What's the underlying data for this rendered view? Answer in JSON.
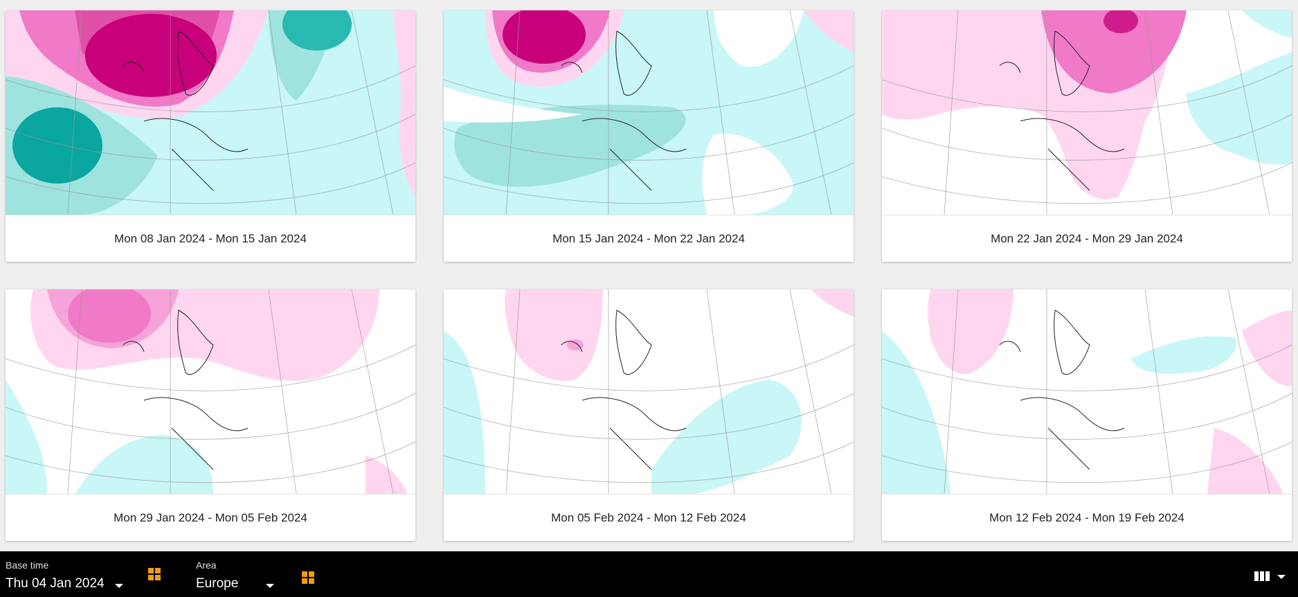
{
  "cards": [
    {
      "caption": "Mon 08 Jan 2024 - Mon 15 Jan 2024"
    },
    {
      "caption": "Mon 15 Jan 2024 - Mon 22 Jan 2024"
    },
    {
      "caption": "Mon 22 Jan 2024 - Mon 29 Jan 2024"
    },
    {
      "caption": "Mon 29 Jan 2024 - Mon 05 Feb 2024"
    },
    {
      "caption": "Mon 05 Feb 2024 - Mon 12 Feb 2024"
    },
    {
      "caption": "Mon 12 Feb 2024 - Mon 19 Feb 2024"
    }
  ],
  "toolbar": {
    "base_time_label": "Base time",
    "base_time_value": "Thu 04 Jan 2024",
    "area_label": "Area",
    "area_value": "Europe"
  },
  "icons": {
    "base_time_grid": "grid-icon",
    "area_grid": "grid-icon",
    "layout": "columns-icon",
    "layout_caret": "caret-down-icon"
  },
  "colors": {
    "accent_orange": "#f39c12",
    "anomaly_positive_strong": "#c8007a",
    "anomaly_positive_medium": "#f07ac8",
    "anomaly_positive_light": "#ffd6ef",
    "anomaly_negative_strong": "#0aa6a0",
    "anomaly_negative_medium": "#9fe3df",
    "anomaly_negative_light": "#c9f6f6"
  }
}
